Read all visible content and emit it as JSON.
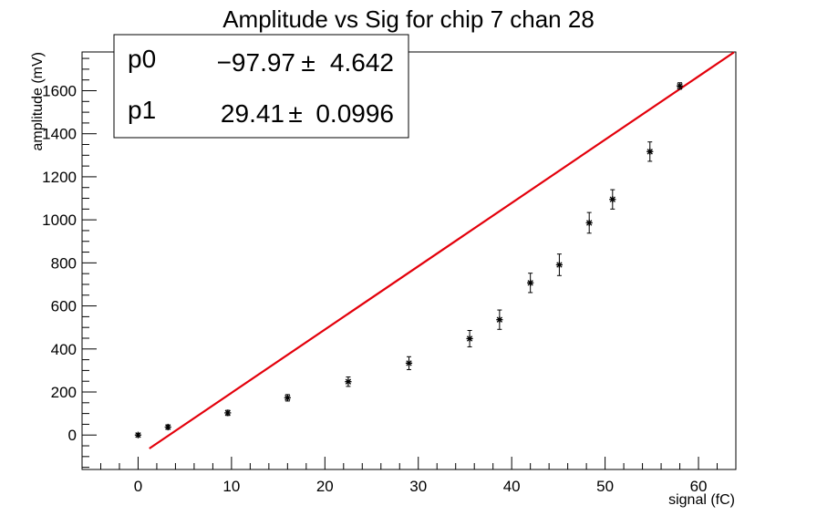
{
  "chart_data": {
    "type": "scatter",
    "title": "Amplitude vs Sig for chip 7 chan 28",
    "xlabel": "signal (fC)",
    "ylabel": "amplitude (mV)",
    "xlim": [
      -6,
      64
    ],
    "ylim": [
      -160,
      1780
    ],
    "xticks": [
      0,
      10,
      20,
      30,
      40,
      50,
      60
    ],
    "yticks": [
      0,
      200,
      400,
      600,
      800,
      1000,
      1200,
      1400,
      1600
    ],
    "x_tick_labels": [
      "0",
      "10",
      "20",
      "30",
      "40",
      "50",
      "60"
    ],
    "y_tick_labels": [
      "0",
      "200",
      "400",
      "600",
      "800",
      "1000",
      "1200",
      "1400",
      "1600"
    ],
    "grid": false,
    "points": [
      {
        "x": 0.0,
        "y": 0,
        "err": 8
      },
      {
        "x": 3.2,
        "y": 37,
        "err": 10
      },
      {
        "x": 9.6,
        "y": 103,
        "err": 12
      },
      {
        "x": 16.0,
        "y": 173,
        "err": 15
      },
      {
        "x": 22.5,
        "y": 248,
        "err": 22
      },
      {
        "x": 29.0,
        "y": 334,
        "err": 30
      },
      {
        "x": 35.5,
        "y": 448,
        "err": 38
      },
      {
        "x": 38.7,
        "y": 536,
        "err": 45
      },
      {
        "x": 42.0,
        "y": 707,
        "err": 45
      },
      {
        "x": 45.1,
        "y": 791,
        "err": 50
      },
      {
        "x": 48.3,
        "y": 986,
        "err": 48
      },
      {
        "x": 50.8,
        "y": 1095,
        "err": 45
      },
      {
        "x": 54.8,
        "y": 1317,
        "err": 45
      },
      {
        "x": 58.0,
        "y": 1622,
        "err": 15
      }
    ],
    "fit": {
      "color": "#e3000b",
      "p0": -97.97,
      "p1": 29.41,
      "x_range": [
        1.2,
        63.8
      ]
    },
    "stats": [
      {
        "name": "p0",
        "value": "−97.97",
        "pm": "±",
        "error": "4.642"
      },
      {
        "name": "p1",
        "value": "29.41",
        "pm": "±",
        "error": "0.0996"
      }
    ]
  }
}
